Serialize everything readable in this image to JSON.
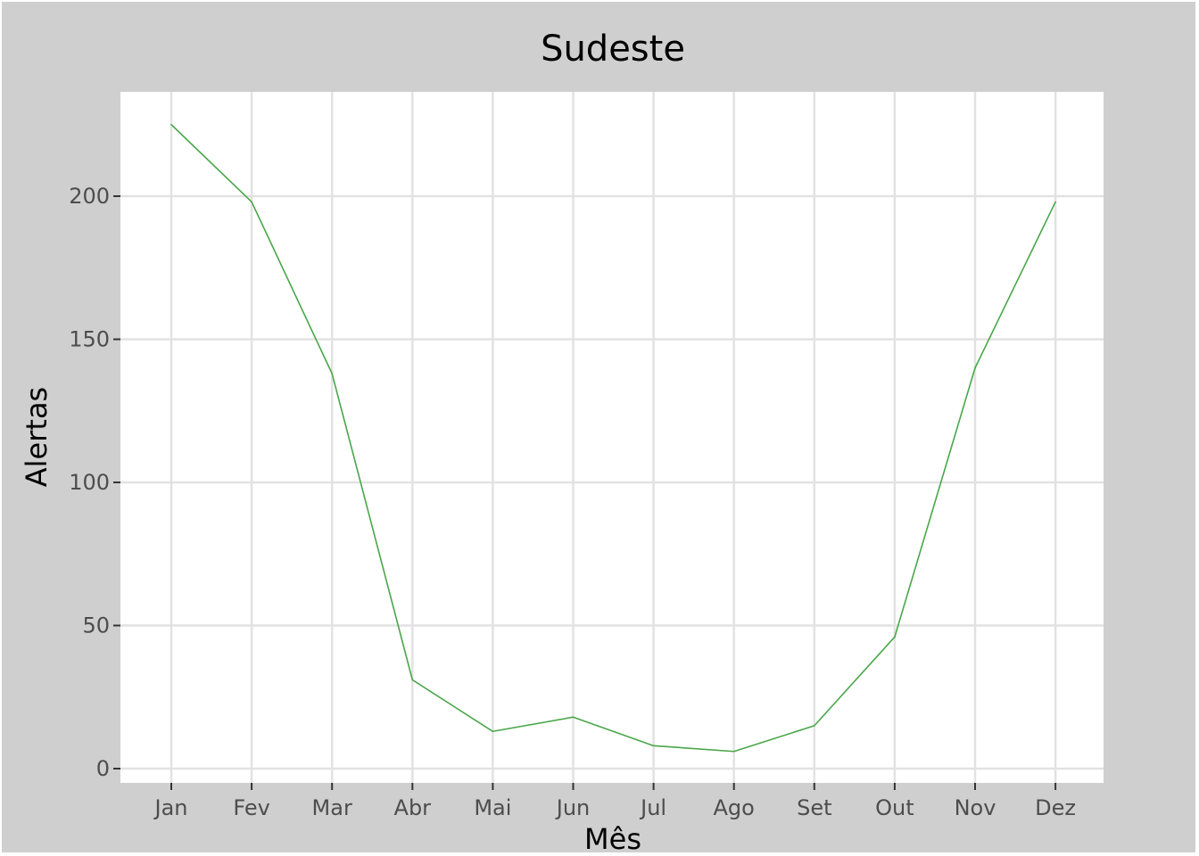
{
  "colors": {
    "background": "#d0cfcf",
    "panel": "#ffffff",
    "grid": "#e2e2e2",
    "line": "#4aa64a",
    "tick": "#333333"
  },
  "chart_data": {
    "type": "line",
    "title": "Sudeste",
    "xlabel": "Mês",
    "ylabel": "Alertas",
    "categories": [
      "Jan",
      "Fev",
      "Mar",
      "Abr",
      "Mai",
      "Jun",
      "Jul",
      "Ago",
      "Set",
      "Out",
      "Nov",
      "Dez"
    ],
    "series": [
      {
        "values": [
          225,
          198,
          138,
          31,
          13,
          18,
          8,
          6,
          15,
          46,
          140,
          198
        ]
      }
    ],
    "yticks": [
      0,
      50,
      100,
      150,
      200
    ],
    "ylim": [
      -5,
      235
    ],
    "grid": true,
    "legend": "none"
  }
}
